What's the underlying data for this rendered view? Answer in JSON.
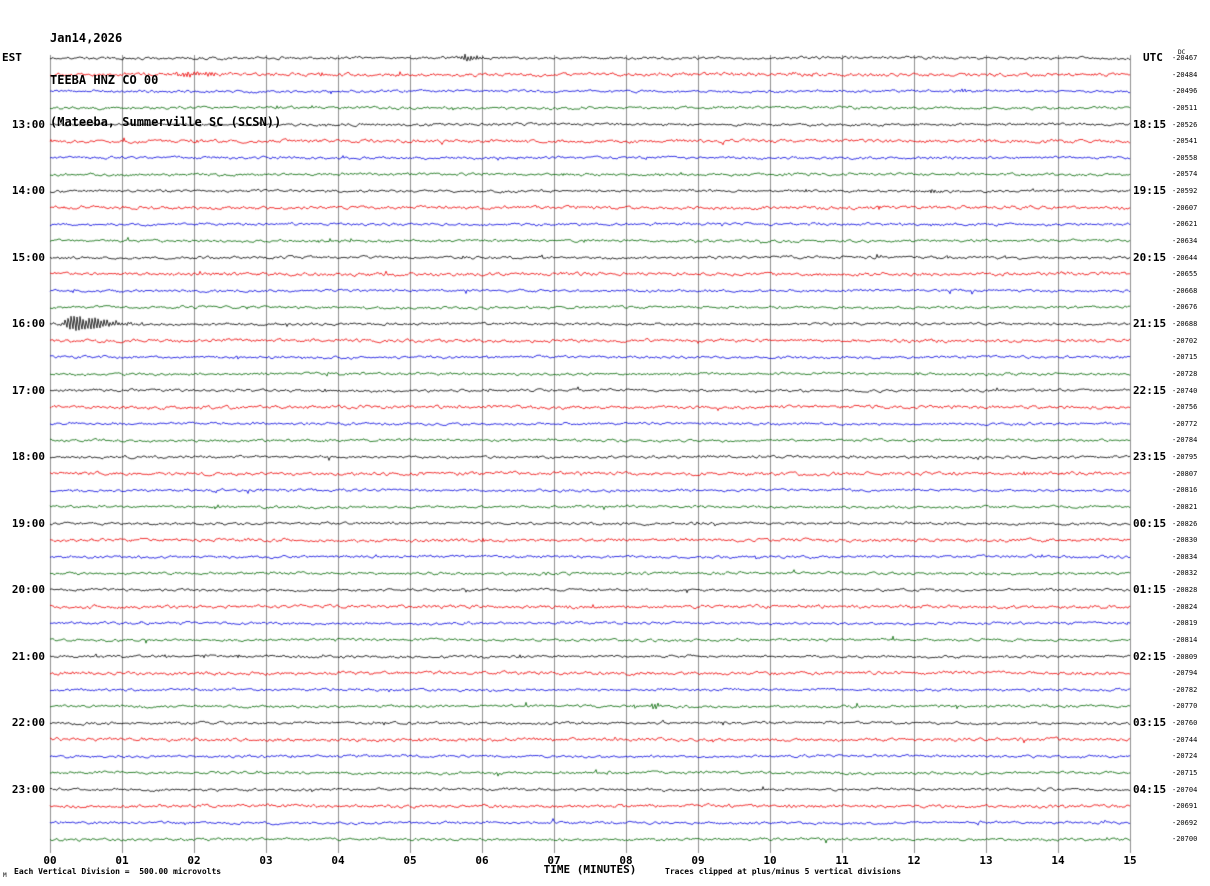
{
  "title": {
    "date": "Jan14,2026",
    "station": "TEEBA HNZ CO 00",
    "location": "(Mateeba, Summerville SC (SCSN))"
  },
  "axes": {
    "left_header": "EST",
    "right_header": "UTC",
    "right_sub_header": "DC",
    "x_title": "TIME (MINUTES)",
    "x_ticks": [
      "00",
      "01",
      "02",
      "03",
      "04",
      "05",
      "06",
      "07",
      "08",
      "09",
      "10",
      "11",
      "12",
      "13",
      "14",
      "15"
    ],
    "footer_left": "Each Vertical Division =  500.00 microvolts",
    "footer_right": "Traces clipped at plus/minus 5 vertical divisions",
    "corner_mark": "M"
  },
  "chart_data": {
    "type": "line",
    "subtype": "helicorder-seismogram",
    "title": "TEEBA HNZ CO 00 (Mateeba, Summerville SC (SCSN)) Jan14,2026",
    "xlabel": "TIME (MINUTES)",
    "x_range": [
      0,
      15
    ],
    "rows": 48,
    "row_interval_min": 15,
    "row_start_est": "12:00",
    "vertical_division_microvolts": 500.0,
    "clip_divisions": 5,
    "trace_colors": [
      "#000000",
      "#ee0000",
      "#0000dd",
      "#006600"
    ],
    "grid_color": "#909090",
    "left_labels": [
      {
        "row": 4,
        "label": "13:00"
      },
      {
        "row": 8,
        "label": "14:00"
      },
      {
        "row": 12,
        "label": "15:00"
      },
      {
        "row": 16,
        "label": "16:00"
      },
      {
        "row": 20,
        "label": "17:00"
      },
      {
        "row": 24,
        "label": "18:00"
      },
      {
        "row": 28,
        "label": "19:00"
      },
      {
        "row": 32,
        "label": "20:00"
      },
      {
        "row": 36,
        "label": "21:00"
      },
      {
        "row": 40,
        "label": "22:00"
      },
      {
        "row": 44,
        "label": "23:00"
      }
    ],
    "right_labels": [
      {
        "row": 4,
        "label": "18:15"
      },
      {
        "row": 8,
        "label": "19:15"
      },
      {
        "row": 12,
        "label": "20:15"
      },
      {
        "row": 16,
        "label": "21:15"
      },
      {
        "row": 20,
        "label": "22:15"
      },
      {
        "row": 24,
        "label": "23:15"
      },
      {
        "row": 28,
        "label": "00:15"
      },
      {
        "row": 32,
        "label": "01:15"
      },
      {
        "row": 36,
        "label": "02:15"
      },
      {
        "row": 40,
        "label": "03:15"
      },
      {
        "row": 44,
        "label": "04:15"
      }
    ],
    "dc_offsets": [
      "-20467",
      "-20484",
      "-20496",
      "-20511",
      "-20526",
      "-20541",
      "-20558",
      "-20574",
      "-20592",
      "-20607",
      "-20621",
      "-20634",
      "-20644",
      "-20655",
      "-20668",
      "-20676",
      "-20688",
      "-20702",
      "-20715",
      "-20728",
      "-20740",
      "-20756",
      "-20772",
      "-20784",
      "-20795",
      "-20807",
      "-20816",
      "-20821",
      "-20826",
      "-20830",
      "-20834",
      "-20832",
      "-20828",
      "-20824",
      "-20819",
      "-20814",
      "-20809",
      "-20794",
      "-20782",
      "-20770",
      "-20760",
      "-20744",
      "-20724",
      "-20715",
      "-20704",
      "-20691",
      "-20692",
      "-20700"
    ],
    "events": [
      {
        "row": 0,
        "minute": 5.75,
        "amp": 3.5,
        "attack": 0.05,
        "decay": 0.18
      },
      {
        "row": 1,
        "minute": 1.9,
        "amp": 2.4,
        "attack": 0.12,
        "decay": 0.3
      },
      {
        "row": 2,
        "minute": 12.65,
        "amp": 1.4,
        "attack": 0.05,
        "decay": 0.12
      },
      {
        "row": 8,
        "minute": 12.25,
        "amp": 2.6,
        "attack": 0.02,
        "decay": 0.06
      },
      {
        "row": 16,
        "minute": 0.3,
        "amp": 8.5,
        "attack": 0.08,
        "decay": 0.4
      },
      {
        "row": 39,
        "minute": 8.1,
        "amp": 2.8,
        "attack": 0.02,
        "decay": 0.05
      },
      {
        "row": 39,
        "minute": 8.38,
        "amp": 4.2,
        "attack": 0.02,
        "decay": 0.07
      }
    ]
  }
}
